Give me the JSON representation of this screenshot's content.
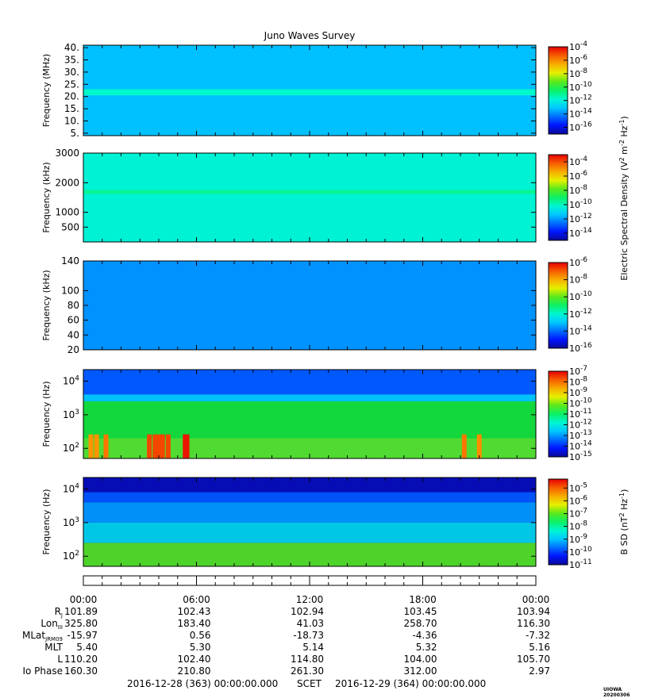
{
  "title": "Juno Waves Survey",
  "colors": {
    "frame": "#000000",
    "background": "#ffffff"
  },
  "chart_data": [
    {
      "type": "heatmap",
      "name": "hfr-high",
      "ylabel": "Frequency (MHz)",
      "yscale": "linear",
      "ylim": [
        4,
        41
      ],
      "yticks": [
        {
          "v": 5,
          "label": "5."
        },
        {
          "v": 10,
          "label": "10."
        },
        {
          "v": 15,
          "label": "15."
        },
        {
          "v": 20,
          "label": "20."
        },
        {
          "v": 25,
          "label": "25."
        },
        {
          "v": 30,
          "label": "30."
        },
        {
          "v": 35,
          "label": "35."
        },
        {
          "v": 40,
          "label": "40."
        }
      ],
      "colorbar": {
        "min_exp": -17,
        "max_exp": -4,
        "labels": [
          -4,
          -6,
          -8,
          -10,
          -12,
          -14,
          -16
        ]
      },
      "background_level": -13.2,
      "bands": [
        {
          "from": 20.5,
          "to": 23,
          "level": -11.5
        }
      ]
    },
    {
      "type": "heatmap",
      "name": "hfr-low",
      "ylabel": "Frequency (kHz)",
      "yscale": "linear",
      "ylim": [
        0,
        3000
      ],
      "yticks": [
        {
          "v": 500,
          "label": "500"
        },
        {
          "v": 1000,
          "label": "1000"
        },
        {
          "v": 2000,
          "label": "2000"
        },
        {
          "v": 3000,
          "label": "3000"
        }
      ],
      "colorbar": {
        "min_exp": -15,
        "max_exp": -3,
        "labels": [
          -4,
          -6,
          -8,
          -10,
          -12,
          -14
        ]
      },
      "background_level": -10.3,
      "bands": [
        {
          "from": 1620,
          "to": 1760,
          "level": -9.4
        }
      ]
    },
    {
      "type": "heatmap",
      "name": "lfr-high",
      "ylabel": "Frequency (kHz)",
      "yscale": "linear",
      "ylim": [
        20,
        140
      ],
      "yticks": [
        {
          "v": 20,
          "label": "20"
        },
        {
          "v": 40,
          "label": "40"
        },
        {
          "v": 60,
          "label": "60"
        },
        {
          "v": 80,
          "label": "80"
        },
        {
          "v": 100,
          "label": "100"
        },
        {
          "v": 140,
          "label": "140"
        }
      ],
      "colorbar": {
        "min_exp": -16,
        "max_exp": -6,
        "labels": [
          -6,
          -8,
          -10,
          -12,
          -14,
          -16
        ]
      },
      "background_level": -13.6,
      "bands": []
    },
    {
      "type": "heatmap",
      "name": "lfr-low-e",
      "ylabel": "Frequency (Hz)",
      "yscale": "log",
      "ylim": [
        50,
        22000
      ],
      "yticks": [
        {
          "v": 100,
          "label": "10",
          "sup": "2"
        },
        {
          "v": 1000,
          "label": "10",
          "sup": "3"
        },
        {
          "v": 10000,
          "label": "10",
          "sup": "4"
        }
      ],
      "colorbar": {
        "min_exp": -15,
        "max_exp": -7,
        "labels": [
          -7,
          -8,
          -9,
          -10,
          -11,
          -12,
          -13,
          -14,
          -15
        ]
      },
      "background_level": -13.6,
      "bands": [
        {
          "from": 2500,
          "to": 4000,
          "level": -12.5
        },
        {
          "from": 200,
          "to": 2500,
          "level": -10.6
        },
        {
          "from": 50,
          "to": 200,
          "level": -10.2
        }
      ],
      "bursts": [
        {
          "hour": 0.4,
          "level": -8.3
        },
        {
          "hour": 0.7,
          "level": -8.3
        },
        {
          "hour": 1.2,
          "level": -8.0
        },
        {
          "hour": 3.5,
          "level": -7.6
        },
        {
          "hour": 3.8,
          "level": -7.6
        },
        {
          "hour": 4.0,
          "level": -7.6
        },
        {
          "hour": 4.2,
          "level": -7.6
        },
        {
          "hour": 4.5,
          "level": -7.6
        },
        {
          "hour": 5.4,
          "level": -7.2
        },
        {
          "hour": 5.5,
          "level": -7.2
        },
        {
          "hour": 20.2,
          "level": -8.0
        },
        {
          "hour": 21.0,
          "level": -8.2
        }
      ]
    },
    {
      "type": "heatmap",
      "name": "lfr-low-b",
      "ylabel": "Frequency (Hz)",
      "yscale": "log",
      "ylim": [
        50,
        22000
      ],
      "yticks": [
        {
          "v": 100,
          "label": "10",
          "sup": "2"
        },
        {
          "v": 1000,
          "label": "10",
          "sup": "3"
        },
        {
          "v": 10000,
          "label": "10",
          "sup": "4"
        }
      ],
      "colorbar": {
        "min_exp": -11,
        "max_exp": -4.3,
        "labels": [
          -5,
          -6,
          -7,
          -8,
          -9,
          -10,
          -11
        ]
      },
      "background_level": -10.8,
      "bands": [
        {
          "from": 4000,
          "to": 8000,
          "level": -9.8
        },
        {
          "from": 1000,
          "to": 4000,
          "level": -9.3
        },
        {
          "from": 250,
          "to": 1000,
          "level": -8.7
        },
        {
          "from": 50,
          "to": 250,
          "level": -7.0
        }
      ]
    }
  ],
  "colorbar_right_labels": [
    {
      "text": "Electric Spectral Density (V",
      "sup1": "2",
      "mid": " m",
      "sup2": "-2",
      "mid2": " Hz",
      "sup3": "-1",
      "end": ")"
    },
    {
      "text": "B SD (nT",
      "sup1": "2",
      "mid": " Hz",
      "sup2": "-1",
      "end": ")"
    }
  ],
  "time_axis": {
    "xlim": [
      0,
      24
    ],
    "tick_hours": [
      0,
      6,
      12,
      18,
      24
    ],
    "tick_labels": [
      "00:00",
      "06:00",
      "12:00",
      "18:00",
      "00:00"
    ]
  },
  "ephemeris": [
    {
      "label": "R",
      "sub": "J",
      "values": [
        "101.89",
        "102.43",
        "102.94",
        "103.45",
        "103.94"
      ]
    },
    {
      "label": "Lon",
      "sub": "III",
      "values": [
        "325.80",
        "183.40",
        "41.03",
        "258.70",
        "116.30"
      ]
    },
    {
      "label": "MLat",
      "sub": "JRM09",
      "values": [
        "-15.97",
        "0.56",
        "-18.73",
        "-4.36",
        "-7.32"
      ]
    },
    {
      "label": "MLT",
      "sub": "",
      "values": [
        "5.40",
        "5.30",
        "5.14",
        "5.32",
        "5.16"
      ]
    },
    {
      "label": "L",
      "sub": "",
      "values": [
        "110.20",
        "102.40",
        "114.80",
        "104.00",
        "105.70"
      ]
    },
    {
      "label": "Io Phase",
      "sub": "",
      "values": [
        "160.30",
        "210.80",
        "261.30",
        "312.00",
        "2.97"
      ]
    }
  ],
  "footer": {
    "start": "2016-12-28 (363) 00:00:00.000",
    "mid": "SCET",
    "end": "2016-12-29 (364) 00:00:00.000"
  },
  "stamp": "UIOWA 20200306"
}
